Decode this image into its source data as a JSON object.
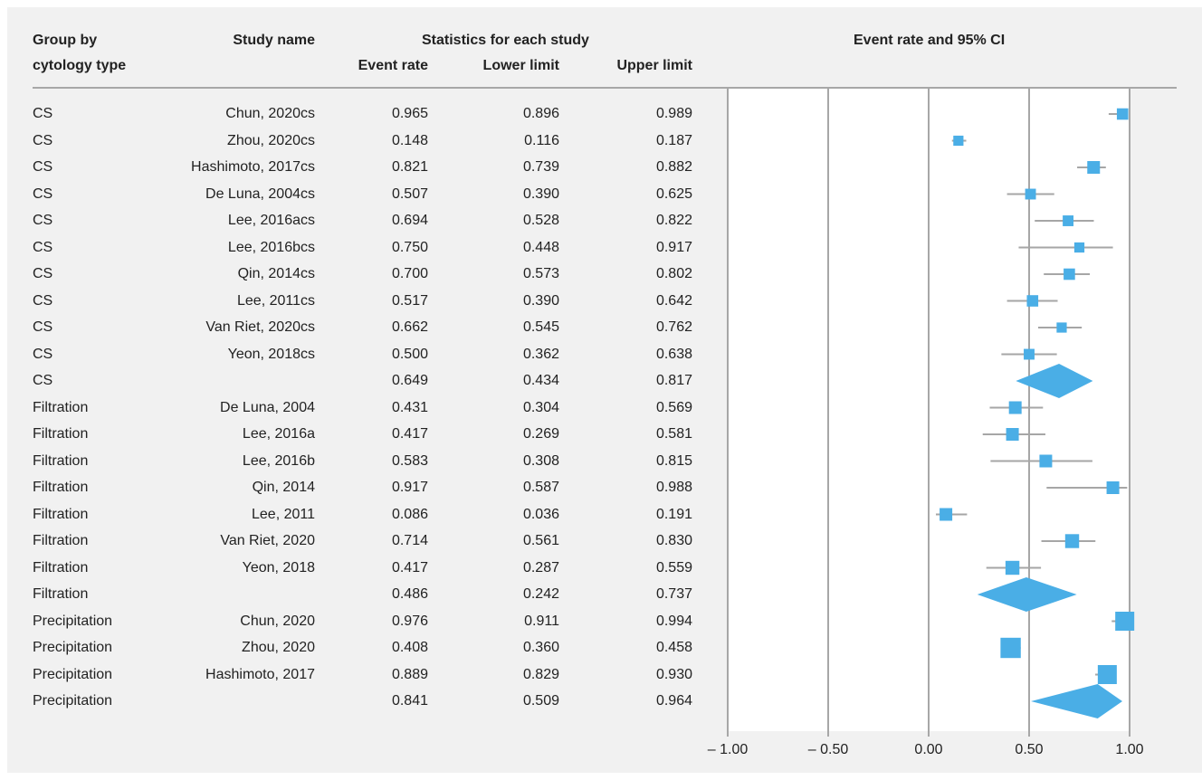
{
  "headers": {
    "group_line1": "Group by",
    "group_line2": "cytology type",
    "study_name": "Study name",
    "stats": "Statistics for each study",
    "event_rate": "Event rate",
    "lower_limit": "Lower limit",
    "upper_limit": "Upper limit",
    "plot_title": "Event rate and 95% CI"
  },
  "rows": [
    {
      "group": "CS",
      "study": "Chun, 2020cs",
      "er": "0.965",
      "ll": "0.896",
      "ul": "0.989"
    },
    {
      "group": "CS",
      "study": "Zhou, 2020cs",
      "er": "0.148",
      "ll": "0.116",
      "ul": "0.187"
    },
    {
      "group": "CS",
      "study": "Hashimoto, 2017cs",
      "er": "0.821",
      "ll": "0.739",
      "ul": "0.882"
    },
    {
      "group": "CS",
      "study": "De Luna, 2004cs",
      "er": "0.507",
      "ll": "0.390",
      "ul": "0.625"
    },
    {
      "group": "CS",
      "study": "Lee, 2016acs",
      "er": "0.694",
      "ll": "0.528",
      "ul": "0.822"
    },
    {
      "group": "CS",
      "study": "Lee, 2016bcs",
      "er": "0.750",
      "ll": "0.448",
      "ul": "0.917"
    },
    {
      "group": "CS",
      "study": "Qin, 2014cs",
      "er": "0.700",
      "ll": "0.573",
      "ul": "0.802"
    },
    {
      "group": "CS",
      "study": "Lee, 2011cs",
      "er": "0.517",
      "ll": "0.390",
      "ul": "0.642"
    },
    {
      "group": "CS",
      "study": "Van Riet, 2020cs",
      "er": "0.662",
      "ll": "0.545",
      "ul": "0.762"
    },
    {
      "group": "CS",
      "study": "Yeon, 2018cs",
      "er": "0.500",
      "ll": "0.362",
      "ul": "0.638"
    },
    {
      "group": "CS",
      "study": "",
      "er": "0.649",
      "ll": "0.434",
      "ul": "0.817"
    },
    {
      "group": "Filtration",
      "study": "De Luna, 2004",
      "er": "0.431",
      "ll": "0.304",
      "ul": "0.569"
    },
    {
      "group": "Filtration",
      "study": "Lee, 2016a",
      "er": "0.417",
      "ll": "0.269",
      "ul": "0.581"
    },
    {
      "group": "Filtration",
      "study": "Lee, 2016b",
      "er": "0.583",
      "ll": "0.308",
      "ul": "0.815"
    },
    {
      "group": "Filtration",
      "study": "Qin, 2014",
      "er": "0.917",
      "ll": "0.587",
      "ul": "0.988"
    },
    {
      "group": "Filtration",
      "study": "Lee, 2011",
      "er": "0.086",
      "ll": "0.036",
      "ul": "0.191"
    },
    {
      "group": "Filtration",
      "study": "Van Riet, 2020",
      "er": "0.714",
      "ll": "0.561",
      "ul": "0.830"
    },
    {
      "group": "Filtration",
      "study": "Yeon, 2018",
      "er": "0.417",
      "ll": "0.287",
      "ul": "0.559"
    },
    {
      "group": "Filtration",
      "study": "",
      "er": "0.486",
      "ll": "0.242",
      "ul": "0.737"
    },
    {
      "group": "Precipitation",
      "study": "Chun, 2020",
      "er": "0.976",
      "ll": "0.911",
      "ul": "0.994"
    },
    {
      "group": "Precipitation",
      "study": "Zhou, 2020",
      "er": "0.408",
      "ll": "0.360",
      "ul": "0.458"
    },
    {
      "group": "Precipitation",
      "study": "Hashimoto, 2017",
      "er": "0.889",
      "ll": "0.829",
      "ul": "0.930"
    },
    {
      "group": "Precipitation",
      "study": "",
      "er": "0.841",
      "ll": "0.509",
      "ul": "0.964"
    }
  ],
  "chart_data": {
    "type": "forest",
    "title": "Event rate and 95% CI",
    "xlim": [
      -1.0,
      1.0
    ],
    "xticks": [
      -1.0,
      -0.5,
      0.0,
      0.5,
      1.0
    ],
    "xtick_labels": [
      "– 1.00",
      "– 0.50",
      "0.00",
      "0.50",
      "1.00"
    ],
    "grid": true,
    "marker_color": "#4aaee6",
    "whisker_color": "#a6a6a6",
    "studies": [
      {
        "x": 0.965,
        "lower": 0.896,
        "upper": 0.989,
        "marker": "square",
        "weight": 0.9
      },
      {
        "x": 0.148,
        "lower": 0.116,
        "upper": 0.187,
        "marker": "square",
        "weight": 0.8
      },
      {
        "x": 0.821,
        "lower": 0.739,
        "upper": 0.882,
        "marker": "square",
        "weight": 1.0
      },
      {
        "x": 0.507,
        "lower": 0.39,
        "upper": 0.625,
        "marker": "square",
        "weight": 0.85
      },
      {
        "x": 0.694,
        "lower": 0.528,
        "upper": 0.822,
        "marker": "square",
        "weight": 0.85
      },
      {
        "x": 0.75,
        "lower": 0.448,
        "upper": 0.917,
        "marker": "square",
        "weight": 0.8
      },
      {
        "x": 0.7,
        "lower": 0.573,
        "upper": 0.802,
        "marker": "square",
        "weight": 0.9
      },
      {
        "x": 0.517,
        "lower": 0.39,
        "upper": 0.642,
        "marker": "square",
        "weight": 0.9
      },
      {
        "x": 0.662,
        "lower": 0.545,
        "upper": 0.762,
        "marker": "square",
        "weight": 0.8
      },
      {
        "x": 0.5,
        "lower": 0.362,
        "upper": 0.638,
        "marker": "square",
        "weight": 0.85
      },
      {
        "x": 0.649,
        "lower": 0.434,
        "upper": 0.817,
        "marker": "diamond"
      },
      {
        "x": 0.431,
        "lower": 0.304,
        "upper": 0.569,
        "marker": "square",
        "weight": 1.0
      },
      {
        "x": 0.417,
        "lower": 0.269,
        "upper": 0.581,
        "marker": "square",
        "weight": 1.0
      },
      {
        "x": 0.583,
        "lower": 0.308,
        "upper": 0.815,
        "marker": "square",
        "weight": 1.0
      },
      {
        "x": 0.917,
        "lower": 0.587,
        "upper": 0.988,
        "marker": "square",
        "weight": 1.0
      },
      {
        "x": 0.086,
        "lower": 0.036,
        "upper": 0.191,
        "marker": "square",
        "weight": 1.0
      },
      {
        "x": 0.714,
        "lower": 0.561,
        "upper": 0.83,
        "marker": "square",
        "weight": 1.1
      },
      {
        "x": 0.417,
        "lower": 0.287,
        "upper": 0.559,
        "marker": "square",
        "weight": 1.1
      },
      {
        "x": 0.486,
        "lower": 0.242,
        "upper": 0.737,
        "marker": "diamond"
      },
      {
        "x": 0.976,
        "lower": 0.911,
        "upper": 0.994,
        "marker": "square",
        "weight": 1.5
      },
      {
        "x": 0.408,
        "lower": 0.36,
        "upper": 0.458,
        "marker": "square",
        "weight": 1.6
      },
      {
        "x": 0.889,
        "lower": 0.829,
        "upper": 0.93,
        "marker": "square",
        "weight": 1.5
      },
      {
        "x": 0.841,
        "lower": 0.509,
        "upper": 0.964,
        "marker": "diamond"
      }
    ]
  }
}
